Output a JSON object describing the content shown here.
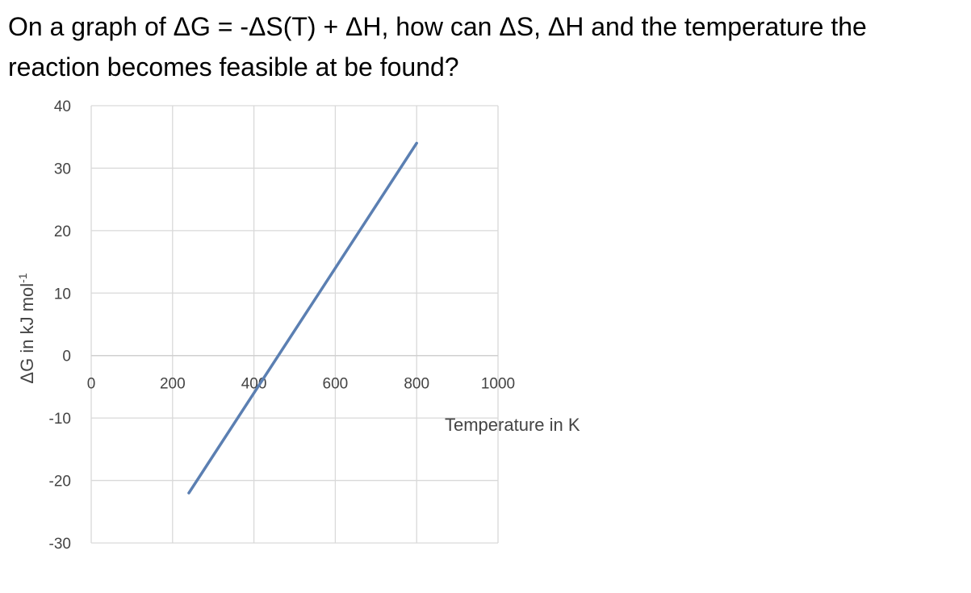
{
  "question": {
    "text": "On a graph of ΔG = -ΔS(T) + ΔH, how can ΔS, ΔH and the temperature the reaction becomes feasible at be found?"
  },
  "chart_data": {
    "type": "line",
    "xlabel": "Temperature in K",
    "ylabel_main": "ΔG in kJ mol",
    "ylabel_superscript": "-1",
    "xlim": [
      0,
      1000
    ],
    "ylim": [
      -30,
      40
    ],
    "x_ticks": [
      "0",
      "200",
      "400",
      "600",
      "800",
      "1000"
    ],
    "y_ticks": [
      "40",
      "30",
      "20",
      "10",
      "0",
      "-10",
      "-20",
      "-30"
    ],
    "grid": true,
    "series": [
      {
        "x": [
          240,
          800
        ],
        "y": [
          -22,
          34
        ],
        "color": "#5b7fb2"
      }
    ]
  }
}
